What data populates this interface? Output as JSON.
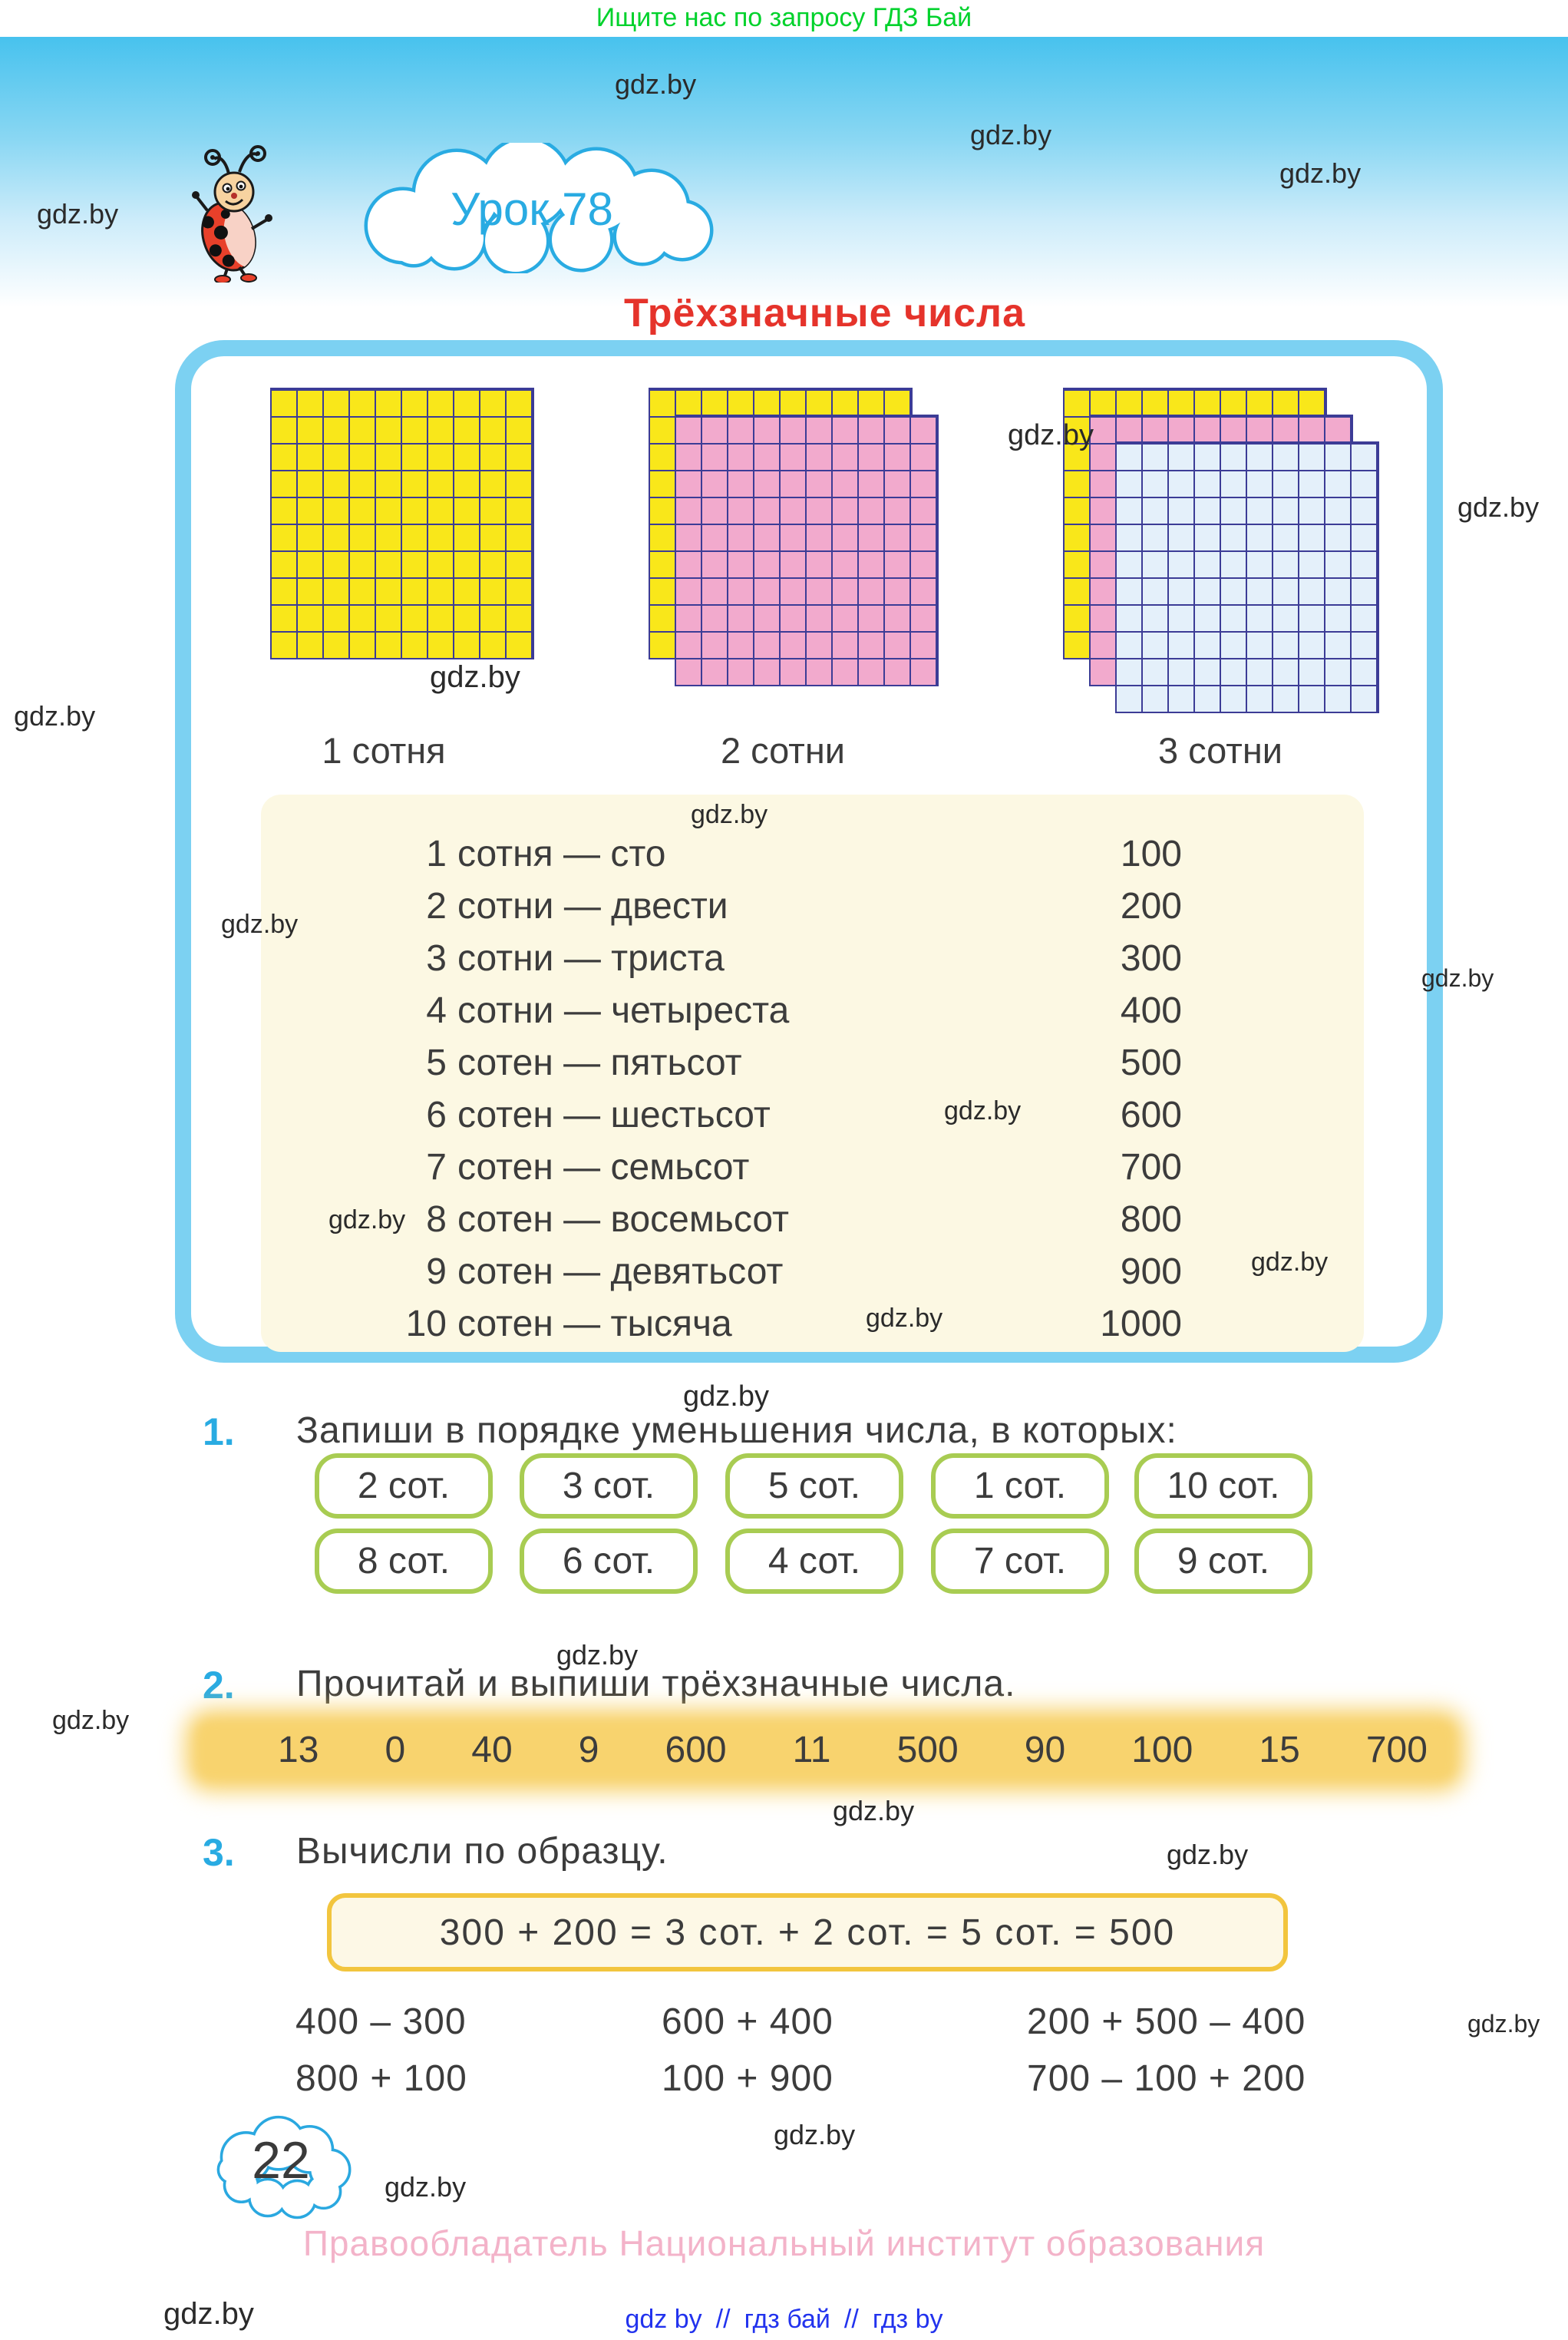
{
  "banner": {
    "text": "Ищите нас по запросу ГДЗ Бай"
  },
  "header": {
    "lesson_label": "Урок 78",
    "title": "Трёхзначные числа"
  },
  "hundreds_panel": {
    "grid_labels": [
      "1 сотня",
      "2 сотни",
      "3 сотни"
    ],
    "grids": [
      {
        "label": "1 сотня",
        "layers": [
          "yellow"
        ]
      },
      {
        "label": "2 сотни",
        "layers": [
          "yellow",
          "pink"
        ]
      },
      {
        "label": "3 сотни",
        "layers": [
          "yellow",
          "pink",
          "blue"
        ]
      }
    ],
    "rows": [
      {
        "n": "1",
        "text": "сотня — сто",
        "value": "100"
      },
      {
        "n": "2",
        "text": "сотни — двести",
        "value": "200"
      },
      {
        "n": "3",
        "text": "сотни — триста",
        "value": "300"
      },
      {
        "n": "4",
        "text": "сотни — четыреста",
        "value": "400"
      },
      {
        "n": "5",
        "text": "сотен — пятьсот",
        "value": "500"
      },
      {
        "n": "6",
        "text": "сотен — шестьсот",
        "value": "600"
      },
      {
        "n": "7",
        "text": "сотен — семьсот",
        "value": "700"
      },
      {
        "n": "8",
        "text": "сотен — восемьсот",
        "value": "800"
      },
      {
        "n": "9",
        "text": "сотен — девятьсот",
        "value": "900"
      },
      {
        "n": "10",
        "text": "сотен — тысяча",
        "value": "1000"
      }
    ]
  },
  "exercise1": {
    "number": "1.",
    "text": "Запиши в порядке уменьшения числа, в которых:",
    "pill_rows": [
      [
        "2 сот.",
        "3 сот.",
        "5 сот.",
        "1 сот.",
        "10 сот."
      ],
      [
        "8 сот.",
        "6 сот.",
        "4 сот.",
        "7 сот.",
        "9 сот."
      ]
    ]
  },
  "exercise2": {
    "number": "2.",
    "text": "Прочитай и выпиши трёхзначные числа.",
    "numbers": [
      "13",
      "0",
      "40",
      "9",
      "600",
      "11",
      "500",
      "90",
      "100",
      "15",
      "700"
    ]
  },
  "exercise3": {
    "number": "3.",
    "text": "Вычисли по образцу.",
    "example": "300 + 200 = 3 сот. + 2 сот. = 5 сот. = 500",
    "problem_rows": [
      [
        "400 – 300",
        "600 + 400",
        "200 + 500 – 400"
      ],
      [
        "800 + 100",
        "100 + 900",
        "700 – 100 + 200"
      ]
    ]
  },
  "footer": {
    "page_number": "22",
    "copyright": "Правообладатель Национальный институт образования",
    "links": [
      "gdz by",
      "//",
      "гдз бай",
      "//",
      "гдз by"
    ]
  },
  "watermark": {
    "text": "gdz.by",
    "positions": [
      [
        801,
        89,
        36
      ],
      [
        1264,
        155,
        36
      ],
      [
        1667,
        205,
        36
      ],
      [
        48,
        258,
        36
      ],
      [
        1313,
        546,
        38
      ],
      [
        1899,
        640,
        36
      ],
      [
        560,
        860,
        40
      ],
      [
        18,
        912,
        36
      ],
      [
        900,
        1042,
        34
      ],
      [
        288,
        1185,
        34
      ],
      [
        1852,
        1256,
        32
      ],
      [
        1230,
        1428,
        34
      ],
      [
        428,
        1570,
        34
      ],
      [
        1630,
        1625,
        34
      ],
      [
        1128,
        1698,
        34
      ],
      [
        890,
        1798,
        38
      ],
      [
        725,
        2135,
        36
      ],
      [
        68,
        2222,
        34
      ],
      [
        1085,
        2338,
        36
      ],
      [
        1520,
        2395,
        36
      ],
      [
        1912,
        2618,
        32
      ],
      [
        1008,
        2760,
        36
      ],
      [
        501,
        2828,
        36
      ],
      [
        213,
        2992,
        40
      ]
    ]
  },
  "colors": {
    "accent_blue": "#29abe2",
    "title_red": "#e5332b",
    "banner_green": "#00d22c",
    "container_border": "#7cd1f2",
    "cream": "#fcf8e3",
    "pill_border": "#a8cc52",
    "band_yellow": "#f8d36e",
    "example_border": "#f2c53e",
    "cell_yellow": "#f9e71a",
    "cell_pink": "#f2aacd",
    "cell_blue": "#e4f0fa",
    "grid_line": "#3c3c96",
    "copyright_pink": "#f3b3c9",
    "link_blue": "#2233ee",
    "text_dark": "#3c3c3c"
  }
}
